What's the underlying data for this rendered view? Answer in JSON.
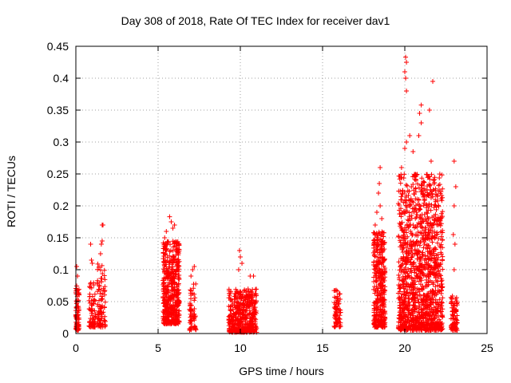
{
  "chart_data": {
    "type": "scatter",
    "title": "Day 308 of 2018, Rate Of TEC Index for receiver dav1",
    "xlabel": "GPS time / hours",
    "ylabel": "ROTI / TECUs",
    "xlim": [
      0,
      25
    ],
    "ylim": [
      0,
      0.45
    ],
    "xticks": [
      0,
      5,
      10,
      15,
      20,
      25
    ],
    "xtick_labels": [
      "0",
      "5",
      "10",
      "15",
      "20",
      "25"
    ],
    "yticks": [
      0,
      0.05,
      0.1,
      0.15,
      0.2,
      0.25,
      0.3,
      0.35,
      0.4,
      0.45
    ],
    "ytick_labels": [
      "0",
      "0.05",
      "0.1",
      "0.15",
      "0.2",
      "0.25",
      "0.3",
      "0.35",
      "0.4",
      "0.45"
    ],
    "grid": true,
    "marker": "+",
    "color": "#ff0000",
    "clusters": [
      {
        "x": [
          0.0,
          0.2
        ],
        "ymin": 0.005,
        "ymax": 0.075,
        "n": 80,
        "outliers": [
          [
            0.05,
            0.105
          ],
          [
            0.1,
            0.09
          ]
        ]
      },
      {
        "x": [
          0.8,
          1.2
        ],
        "ymin": 0.01,
        "ymax": 0.08,
        "n": 70,
        "outliers": [
          [
            0.9,
            0.14
          ],
          [
            0.95,
            0.115
          ],
          [
            1.0,
            0.11
          ]
        ]
      },
      {
        "x": [
          1.3,
          1.8
        ],
        "ymin": 0.01,
        "ymax": 0.11,
        "n": 90,
        "outliers": [
          [
            1.6,
            0.17
          ],
          [
            1.65,
            0.17
          ],
          [
            1.6,
            0.145
          ],
          [
            1.55,
            0.14
          ],
          [
            1.5,
            0.125
          ]
        ]
      },
      {
        "x": [
          5.3,
          6.3
        ],
        "ymin": 0.015,
        "ymax": 0.145,
        "n": 500,
        "outliers": [
          [
            5.7,
            0.183
          ],
          [
            5.8,
            0.175
          ],
          [
            6.0,
            0.17
          ],
          [
            5.5,
            0.16
          ],
          [
            5.9,
            0.165
          ],
          [
            5.4,
            0.15
          ]
        ]
      },
      {
        "x": [
          6.9,
          7.3
        ],
        "ymin": 0.005,
        "ymax": 0.08,
        "n": 60,
        "outliers": [
          [
            7.2,
            0.105
          ],
          [
            7.1,
            0.1
          ],
          [
            7.0,
            0.09
          ]
        ]
      },
      {
        "x": [
          9.3,
          11.0
        ],
        "ymin": 0.002,
        "ymax": 0.07,
        "n": 450,
        "outliers": [
          [
            9.95,
            0.13
          ],
          [
            10.0,
            0.12
          ],
          [
            10.1,
            0.11
          ],
          [
            9.9,
            0.1
          ],
          [
            10.6,
            0.09
          ],
          [
            10.8,
            0.09
          ]
        ]
      },
      {
        "x": [
          15.7,
          16.1
        ],
        "ymin": 0.01,
        "ymax": 0.07,
        "n": 70,
        "outliers": []
      },
      {
        "x": [
          18.1,
          18.8
        ],
        "ymin": 0.01,
        "ymax": 0.16,
        "n": 360,
        "outliers": [
          [
            18.5,
            0.26
          ],
          [
            18.45,
            0.235
          ],
          [
            18.4,
            0.22
          ],
          [
            18.5,
            0.2
          ],
          [
            18.3,
            0.19
          ],
          [
            18.6,
            0.18
          ],
          [
            18.2,
            0.17
          ]
        ]
      },
      {
        "x": [
          19.6,
          22.3
        ],
        "ymin": 0.005,
        "ymax": 0.25,
        "n": 1300,
        "outliers": [
          [
            20.05,
            0.433
          ],
          [
            20.1,
            0.425
          ],
          [
            20.0,
            0.41
          ],
          [
            20.05,
            0.4
          ],
          [
            21.7,
            0.395
          ],
          [
            20.1,
            0.38
          ],
          [
            21.0,
            0.358
          ],
          [
            20.9,
            0.345
          ],
          [
            21.0,
            0.33
          ],
          [
            21.5,
            0.35
          ],
          [
            20.85,
            0.31
          ],
          [
            20.3,
            0.31
          ],
          [
            20.1,
            0.3
          ],
          [
            20.0,
            0.29
          ],
          [
            20.5,
            0.285
          ],
          [
            21.6,
            0.27
          ],
          [
            19.8,
            0.26
          ]
        ]
      },
      {
        "x": [
          22.8,
          23.2
        ],
        "ymin": 0.005,
        "ymax": 0.06,
        "n": 80,
        "outliers": [
          [
            23.0,
            0.27
          ],
          [
            23.1,
            0.23
          ],
          [
            23.0,
            0.2
          ],
          [
            22.95,
            0.155
          ],
          [
            23.05,
            0.14
          ],
          [
            23.0,
            0.1
          ]
        ]
      }
    ]
  }
}
